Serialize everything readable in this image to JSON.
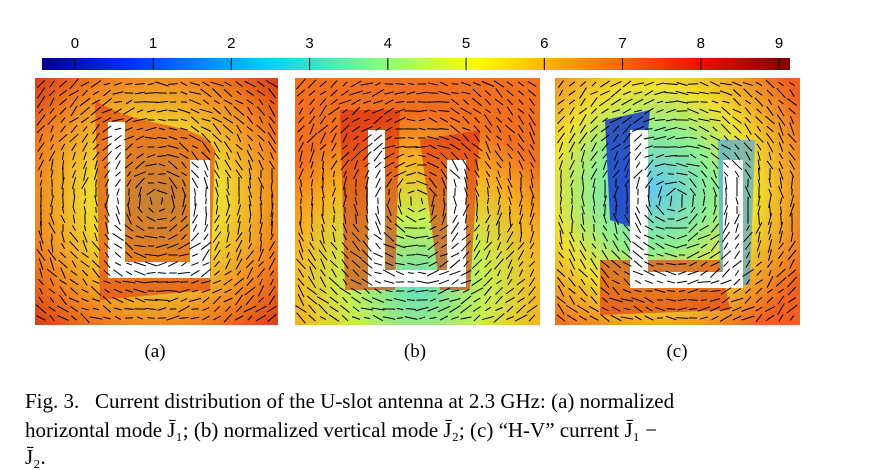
{
  "colorbar": {
    "lim": [
      -0.42,
      9.14
    ],
    "ticks": [
      0,
      1,
      2,
      3,
      4,
      5,
      6,
      7,
      8,
      9
    ]
  },
  "panels": [
    {
      "label": "(a)"
    },
    {
      "label": "(b)"
    },
    {
      "label": "(c)"
    }
  ],
  "caption": {
    "lines": [
      "Fig. 3.   Current distribution of the U-slot antenna at 2.3 GHz: (a) normalized",
      "horizontal mode J̄₁; (b) normalized vertical mode J̄₂; (c) “H-V” current J̄₁ −",
      "J̄₂."
    ]
  }
}
